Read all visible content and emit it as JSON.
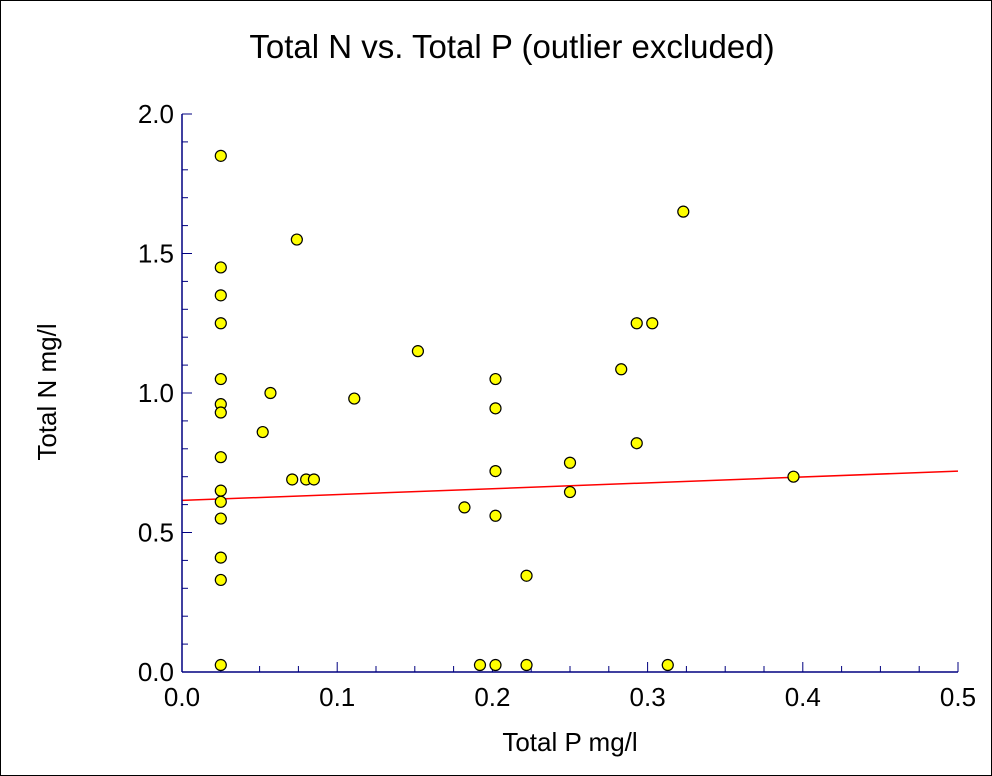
{
  "chart_data": {
    "type": "scatter",
    "title": "Total N vs. Total P (outlier excluded)",
    "xlabel": "Total P mg/l",
    "ylabel": "Total N mg/l",
    "xlim": [
      0.0,
      0.5
    ],
    "ylim": [
      0.0,
      2.0
    ],
    "x_ticks": [
      "0.0",
      "0.1",
      "0.2",
      "0.3",
      "0.4",
      "0.5"
    ],
    "y_ticks": [
      "0.0",
      "0.5",
      "1.0",
      "1.5",
      "2.0"
    ],
    "grid": false,
    "legend": "none",
    "colors": {
      "marker_fill": "#ffff00",
      "marker_edge": "#000000",
      "fit_line": "#ff0000",
      "axis": "#000080"
    },
    "points": [
      {
        "x": 0.025,
        "y": 1.85
      },
      {
        "x": 0.025,
        "y": 1.45
      },
      {
        "x": 0.025,
        "y": 1.35
      },
      {
        "x": 0.025,
        "y": 1.25
      },
      {
        "x": 0.025,
        "y": 1.05
      },
      {
        "x": 0.025,
        "y": 0.96
      },
      {
        "x": 0.025,
        "y": 0.93
      },
      {
        "x": 0.025,
        "y": 0.77
      },
      {
        "x": 0.025,
        "y": 0.65
      },
      {
        "x": 0.025,
        "y": 0.61
      },
      {
        "x": 0.025,
        "y": 0.55
      },
      {
        "x": 0.025,
        "y": 0.41
      },
      {
        "x": 0.025,
        "y": 0.33
      },
      {
        "x": 0.025,
        "y": 0.025
      },
      {
        "x": 0.052,
        "y": 0.86
      },
      {
        "x": 0.057,
        "y": 1.0
      },
      {
        "x": 0.071,
        "y": 0.69
      },
      {
        "x": 0.074,
        "y": 1.55
      },
      {
        "x": 0.08,
        "y": 0.69
      },
      {
        "x": 0.085,
        "y": 0.69
      },
      {
        "x": 0.111,
        "y": 0.98
      },
      {
        "x": 0.152,
        "y": 1.15
      },
      {
        "x": 0.182,
        "y": 0.59
      },
      {
        "x": 0.192,
        "y": 0.025
      },
      {
        "x": 0.202,
        "y": 1.05
      },
      {
        "x": 0.202,
        "y": 0.945
      },
      {
        "x": 0.202,
        "y": 0.72
      },
      {
        "x": 0.202,
        "y": 0.56
      },
      {
        "x": 0.202,
        "y": 0.025
      },
      {
        "x": 0.222,
        "y": 0.345
      },
      {
        "x": 0.222,
        "y": 0.025
      },
      {
        "x": 0.25,
        "y": 0.75
      },
      {
        "x": 0.25,
        "y": 0.645
      },
      {
        "x": 0.283,
        "y": 1.085
      },
      {
        "x": 0.293,
        "y": 1.25
      },
      {
        "x": 0.293,
        "y": 0.82
      },
      {
        "x": 0.303,
        "y": 1.25
      },
      {
        "x": 0.313,
        "y": 0.025
      },
      {
        "x": 0.323,
        "y": 1.65
      },
      {
        "x": 0.394,
        "y": 0.7
      }
    ],
    "fit_line": {
      "x": [
        0.0,
        0.5
      ],
      "y": [
        0.615,
        0.72
      ]
    }
  }
}
